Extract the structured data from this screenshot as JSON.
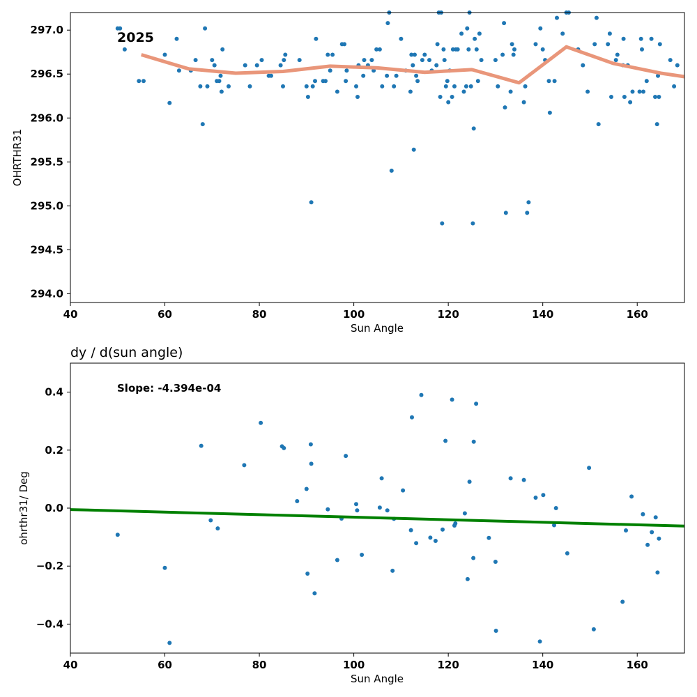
{
  "chart_data": [
    {
      "type": "scatter",
      "title": "",
      "xlabel": "Sun Angle",
      "ylabel": "OHRTHR31",
      "xlim": [
        40,
        170
      ],
      "ylim": [
        293.9,
        297.2
      ],
      "xticks": [
        40,
        60,
        80,
        100,
        120,
        140,
        160
      ],
      "yticks": [
        "294.0",
        "294.5",
        "295.0",
        "295.5",
        "296.0",
        "296.5",
        "297.0"
      ],
      "grid": false,
      "annotation": "2025",
      "points_color": "#1f77b4",
      "trend_color": "#e9967a",
      "points": [
        [
          50,
          297.02
        ],
        [
          50.5,
          297.02
        ],
        [
          51.5,
          296.78
        ],
        [
          54.5,
          296.42
        ],
        [
          55.5,
          296.42
        ],
        [
          60,
          296.72
        ],
        [
          61,
          296.17
        ],
        [
          62.5,
          296.9
        ],
        [
          63,
          296.54
        ],
        [
          65.5,
          296.54
        ],
        [
          66.5,
          296.66
        ],
        [
          67.5,
          296.36
        ],
        [
          68,
          295.93
        ],
        [
          68.5,
          297.02
        ],
        [
          69,
          296.36
        ],
        [
          70,
          296.66
        ],
        [
          70.5,
          296.6
        ],
        [
          71,
          296.42
        ],
        [
          71.5,
          296.42
        ],
        [
          71.8,
          296.48
        ],
        [
          72,
          296.3
        ],
        [
          72.2,
          296.78
        ],
        [
          73.5,
          296.36
        ],
        [
          77,
          296.6
        ],
        [
          78,
          296.36
        ],
        [
          79.5,
          296.6
        ],
        [
          80.5,
          296.66
        ],
        [
          82,
          296.48
        ],
        [
          82.5,
          296.48
        ],
        [
          84.5,
          296.6
        ],
        [
          85,
          296.36
        ],
        [
          85.2,
          296.66
        ],
        [
          85.5,
          296.72
        ],
        [
          88.5,
          296.66
        ],
        [
          90,
          296.36
        ],
        [
          90.3,
          296.24
        ],
        [
          91,
          295.04
        ],
        [
          91.3,
          296.36
        ],
        [
          91.8,
          296.42
        ],
        [
          92,
          296.9
        ],
        [
          93.5,
          296.42
        ],
        [
          94,
          296.42
        ],
        [
          94.5,
          296.72
        ],
        [
          95,
          296.54
        ],
        [
          95.5,
          296.72
        ],
        [
          96.5,
          296.3
        ],
        [
          97.5,
          296.84
        ],
        [
          98,
          296.84
        ],
        [
          98.3,
          296.42
        ],
        [
          98.5,
          296.54
        ],
        [
          100.5,
          296.36
        ],
        [
          100.8,
          296.24
        ],
        [
          101,
          296.6
        ],
        [
          102,
          296.48
        ],
        [
          102.2,
          296.66
        ],
        [
          103,
          296.6
        ],
        [
          103.8,
          296.66
        ],
        [
          104.2,
          296.54
        ],
        [
          104.8,
          296.78
        ],
        [
          105.5,
          296.78
        ],
        [
          106,
          296.36
        ],
        [
          107,
          296.48
        ],
        [
          107.2,
          297.08
        ],
        [
          107.5,
          297.2
        ],
        [
          108,
          295.4
        ],
        [
          108.5,
          296.36
        ],
        [
          109,
          296.48
        ],
        [
          110,
          296.9
        ],
        [
          111,
          296.54
        ],
        [
          112,
          296.3
        ],
        [
          112.2,
          296.72
        ],
        [
          112.5,
          296.6
        ],
        [
          112.7,
          295.64
        ],
        [
          112.9,
          296.72
        ],
        [
          113.2,
          296.48
        ],
        [
          113.5,
          296.42
        ],
        [
          114.5,
          296.66
        ],
        [
          115,
          296.72
        ],
        [
          116,
          296.66
        ],
        [
          116.5,
          296.54
        ],
        [
          117.5,
          296.6
        ],
        [
          117.7,
          296.84
        ],
        [
          118,
          297.2
        ],
        [
          118.3,
          296.24
        ],
        [
          118.5,
          297.2
        ],
        [
          118.7,
          294.8
        ],
        [
          119,
          296.78
        ],
        [
          119.2,
          296.66
        ],
        [
          119.5,
          296.36
        ],
        [
          119.8,
          296.42
        ],
        [
          120,
          296.18
        ],
        [
          120.3,
          296.54
        ],
        [
          120.8,
          296.24
        ],
        [
          121,
          296.78
        ],
        [
          121.3,
          296.36
        ],
        [
          121.6,
          296.78
        ],
        [
          122,
          296.78
        ],
        [
          122.8,
          296.96
        ],
        [
          123.3,
          296.3
        ],
        [
          123.8,
          296.36
        ],
        [
          124,
          297.02
        ],
        [
          124.3,
          296.78
        ],
        [
          124.5,
          297.2
        ],
        [
          124.8,
          296.36
        ],
        [
          125.2,
          294.8
        ],
        [
          125.4,
          295.88
        ],
        [
          125.6,
          296.9
        ],
        [
          126,
          296.78
        ],
        [
          126.3,
          296.42
        ],
        [
          126.6,
          296.96
        ],
        [
          127,
          296.66
        ],
        [
          130,
          296.66
        ],
        [
          130.5,
          296.36
        ],
        [
          131.5,
          296.72
        ],
        [
          131.8,
          297.08
        ],
        [
          132,
          296.12
        ],
        [
          132.2,
          294.92
        ],
        [
          133.2,
          296.3
        ],
        [
          133.5,
          296.84
        ],
        [
          133.8,
          296.72
        ],
        [
          134,
          296.78
        ],
        [
          136,
          296.18
        ],
        [
          136.3,
          296.36
        ],
        [
          136.7,
          294.92
        ],
        [
          137,
          295.04
        ],
        [
          138.5,
          296.84
        ],
        [
          139.5,
          297.02
        ],
        [
          140,
          296.78
        ],
        [
          140.5,
          296.66
        ],
        [
          141.3,
          296.42
        ],
        [
          141.5,
          296.06
        ],
        [
          142.5,
          296.42
        ],
        [
          143,
          297.14
        ],
        [
          144.2,
          296.96
        ],
        [
          145,
          297.2
        ],
        [
          145.5,
          297.2
        ],
        [
          147.5,
          296.78
        ],
        [
          148.5,
          296.6
        ],
        [
          149.5,
          296.3
        ],
        [
          151,
          296.84
        ],
        [
          151.4,
          297.14
        ],
        [
          151.8,
          295.93
        ],
        [
          153.8,
          296.84
        ],
        [
          154.2,
          296.96
        ],
        [
          154.5,
          296.24
        ],
        [
          155.5,
          296.66
        ],
        [
          155.8,
          296.72
        ],
        [
          157,
          296.6
        ],
        [
          157.1,
          296.9
        ],
        [
          157.3,
          296.24
        ],
        [
          158,
          296.6
        ],
        [
          158.5,
          296.18
        ],
        [
          159,
          296.3
        ],
        [
          160.5,
          296.3
        ],
        [
          160.8,
          296.9
        ],
        [
          161,
          296.78
        ],
        [
          161.3,
          296.3
        ],
        [
          162,
          296.42
        ],
        [
          163,
          296.9
        ],
        [
          163.8,
          296.24
        ],
        [
          164.2,
          295.93
        ],
        [
          164.4,
          296.48
        ],
        [
          164.6,
          296.24
        ],
        [
          164.8,
          296.84
        ],
        [
          167,
          296.66
        ],
        [
          167.8,
          296.36
        ],
        [
          168.5,
          296.6
        ]
      ],
      "trend": [
        [
          55,
          296.72
        ],
        [
          65,
          296.56
        ],
        [
          75,
          296.51
        ],
        [
          85,
          296.53
        ],
        [
          95,
          296.59
        ],
        [
          105,
          296.57
        ],
        [
          115,
          296.52
        ],
        [
          125,
          296.55
        ],
        [
          135,
          296.4
        ],
        [
          145,
          296.81
        ],
        [
          155,
          296.62
        ],
        [
          165,
          296.51
        ],
        [
          170,
          296.47
        ]
      ]
    },
    {
      "type": "scatter",
      "title": "dy / d(sun angle)",
      "xlabel": "Sun Angle",
      "ylabel": "ohrthr31/ Deg",
      "xlim": [
        40,
        170
      ],
      "ylim": [
        -0.5,
        0.5
      ],
      "xticks": [
        40,
        60,
        80,
        100,
        120,
        140,
        160
      ],
      "yticks": [
        "−0.4",
        "−0.2",
        "0.0",
        "0.2",
        "0.4"
      ],
      "yticks_values": [
        -0.4,
        -0.2,
        0.0,
        0.2,
        0.4
      ],
      "grid": false,
      "annotation": "Slope: -4.394e-04",
      "points_color": "#1f77b4",
      "fit_color": "#008000",
      "fit": [
        [
          40,
          -0.005
        ],
        [
          170,
          -0.062
        ]
      ],
      "points": [
        [
          50,
          -0.092
        ],
        [
          60,
          -0.206
        ],
        [
          61,
          -0.465
        ],
        [
          67.7,
          0.215
        ],
        [
          69.7,
          -0.042
        ],
        [
          71.2,
          -0.07
        ],
        [
          76.8,
          0.148
        ],
        [
          80.3,
          0.294
        ],
        [
          84.8,
          0.213
        ],
        [
          85.2,
          0.207
        ],
        [
          88,
          0.024
        ],
        [
          90,
          0.066
        ],
        [
          90.2,
          -0.226
        ],
        [
          90.9,
          0.22
        ],
        [
          91,
          0.153
        ],
        [
          91.7,
          -0.294
        ],
        [
          94.5,
          -0.004
        ],
        [
          96.5,
          -0.179
        ],
        [
          97.4,
          -0.036
        ],
        [
          98.3,
          0.18
        ],
        [
          100.5,
          0.014
        ],
        [
          100.7,
          -0.008
        ],
        [
          101.7,
          -0.161
        ],
        [
          105.5,
          0.002
        ],
        [
          105.9,
          0.103
        ],
        [
          107.1,
          -0.008
        ],
        [
          108.2,
          -0.216
        ],
        [
          108.5,
          -0.037
        ],
        [
          110.4,
          0.061
        ],
        [
          112.1,
          -0.076
        ],
        [
          112.3,
          0.313
        ],
        [
          113.2,
          -0.121
        ],
        [
          114.3,
          0.39
        ],
        [
          116.2,
          -0.102
        ],
        [
          117.3,
          -0.113
        ],
        [
          118.8,
          -0.074
        ],
        [
          119.4,
          0.232
        ],
        [
          120.8,
          0.374
        ],
        [
          121.3,
          -0.06
        ],
        [
          121.5,
          -0.053
        ],
        [
          123.5,
          -0.018
        ],
        [
          124.1,
          -0.245
        ],
        [
          124.5,
          0.091
        ],
        [
          125.3,
          -0.172
        ],
        [
          125.4,
          0.229
        ],
        [
          125.9,
          0.36
        ],
        [
          128.6,
          -0.103
        ],
        [
          130,
          -0.185
        ],
        [
          130.1,
          -0.423
        ],
        [
          133.2,
          0.103
        ],
        [
          136,
          0.097
        ],
        [
          138.5,
          0.036
        ],
        [
          139.4,
          -0.46
        ],
        [
          140.1,
          0.045
        ],
        [
          142.4,
          -0.059
        ],
        [
          142.8,
          0.0
        ],
        [
          145.2,
          -0.156
        ],
        [
          149.8,
          0.139
        ],
        [
          150.8,
          -0.418
        ],
        [
          156.9,
          -0.323
        ],
        [
          157.6,
          -0.077
        ],
        [
          158.8,
          0.04
        ],
        [
          161.2,
          -0.021
        ],
        [
          162.2,
          -0.127
        ],
        [
          163.1,
          -0.083
        ],
        [
          163.9,
          -0.032
        ],
        [
          164.3,
          -0.222
        ],
        [
          164.6,
          -0.105
        ]
      ]
    }
  ]
}
